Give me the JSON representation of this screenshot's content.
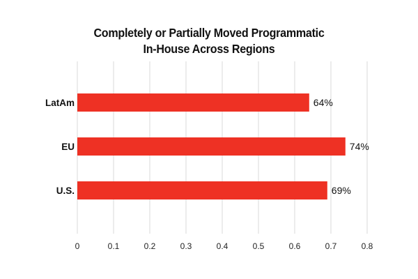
{
  "chart_data": {
    "type": "bar",
    "orientation": "horizontal",
    "title_lines": [
      "Completely or Partially Moved Programmatic",
      "In-House Across Regions"
    ],
    "categories": [
      "LatAm",
      "EU",
      "U.S."
    ],
    "values": [
      0.64,
      0.74,
      0.69
    ],
    "data_labels": [
      "64%",
      "74%",
      "69%"
    ],
    "xticks": [
      0,
      0.1,
      0.2,
      0.3,
      0.4,
      0.5,
      0.6,
      0.7,
      0.8
    ],
    "xtick_labels": [
      "0",
      "0.1",
      "0.2",
      "0.3",
      "0.4",
      "0.5",
      "0.6",
      "0.7",
      "0.8"
    ],
    "xlim": [
      0,
      0.8
    ],
    "xlabel": "",
    "ylabel": "",
    "grid": "vertical",
    "bar_color": "#ee3124",
    "grid_color": "#d9d9d9"
  }
}
